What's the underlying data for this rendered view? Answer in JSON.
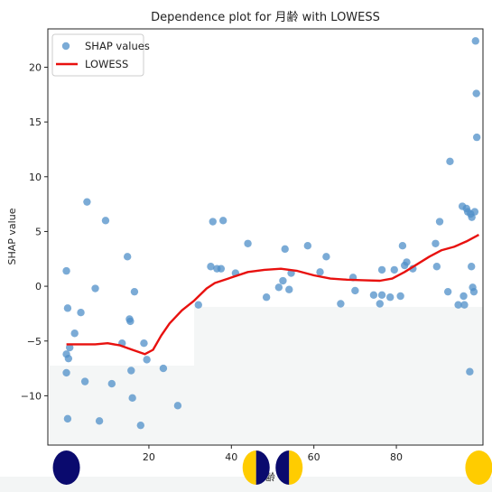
{
  "chart_data": {
    "type": "scatter",
    "title": "Dependence plot for 月齢 with LOWESS",
    "xlabel": "月齢",
    "ylabel": "SHAP value",
    "xlim": [
      -4.5,
      101
    ],
    "ylim": [
      -14.5,
      23.5
    ],
    "x_ticks": [
      20,
      40,
      60,
      80
    ],
    "y_ticks": [
      -10,
      -5,
      0,
      5,
      10,
      15,
      20
    ],
    "grid": false,
    "legend": {
      "position": "top-left",
      "entries": [
        "SHAP values",
        "LOWESS"
      ]
    },
    "colors": {
      "points": "#4f8fc8",
      "lowess": "#e8110f",
      "moon_dark": "#0a0a6e",
      "moon_light": "#ffcc00"
    },
    "series": [
      {
        "name": "SHAP values",
        "kind": "scatter",
        "points": [
          [
            0.0,
            1.4
          ],
          [
            0.3,
            -2.0
          ],
          [
            0.8,
            -5.6
          ],
          [
            0.0,
            -6.2
          ],
          [
            0.5,
            -6.6
          ],
          [
            0.0,
            -7.9
          ],
          [
            0.3,
            -12.1
          ],
          [
            2.0,
            -4.3
          ],
          [
            3.5,
            -2.4
          ],
          [
            4.5,
            -8.7
          ],
          [
            5.0,
            7.7
          ],
          [
            7.0,
            -0.2
          ],
          [
            8.0,
            -12.3
          ],
          [
            9.5,
            6.0
          ],
          [
            11.0,
            -8.9
          ],
          [
            13.5,
            -5.2
          ],
          [
            14.8,
            2.7
          ],
          [
            15.3,
            -3.0
          ],
          [
            15.5,
            -3.2
          ],
          [
            15.7,
            -7.7
          ],
          [
            16.0,
            -10.2
          ],
          [
            16.5,
            -0.5
          ],
          [
            18.0,
            -12.7
          ],
          [
            18.8,
            -5.2
          ],
          [
            19.5,
            -6.7
          ],
          [
            23.5,
            -7.5
          ],
          [
            27.0,
            -10.9
          ],
          [
            32.0,
            -1.7
          ],
          [
            35.0,
            1.8
          ],
          [
            35.5,
            5.9
          ],
          [
            36.5,
            1.6
          ],
          [
            37.5,
            1.6
          ],
          [
            38.0,
            6.0
          ],
          [
            41.0,
            1.2
          ],
          [
            44.0,
            3.9
          ],
          [
            48.5,
            -1.0
          ],
          [
            51.5,
            -0.1
          ],
          [
            52.5,
            0.5
          ],
          [
            53.0,
            3.4
          ],
          [
            54.0,
            -0.3
          ],
          [
            54.5,
            1.2
          ],
          [
            58.5,
            3.7
          ],
          [
            61.5,
            1.3
          ],
          [
            63.0,
            2.7
          ],
          [
            66.5,
            -1.6
          ],
          [
            69.5,
            0.8
          ],
          [
            70.0,
            -0.4
          ],
          [
            74.5,
            -0.8
          ],
          [
            76.0,
            -1.6
          ],
          [
            76.5,
            -0.8
          ],
          [
            76.5,
            1.5
          ],
          [
            78.5,
            -1.0
          ],
          [
            79.5,
            1.5
          ],
          [
            81.0,
            -0.9
          ],
          [
            81.5,
            3.7
          ],
          [
            82.0,
            1.9
          ],
          [
            82.5,
            2.2
          ],
          [
            84.0,
            1.6
          ],
          [
            89.5,
            3.9
          ],
          [
            89.8,
            1.8
          ],
          [
            90.5,
            5.9
          ],
          [
            92.5,
            -0.5
          ],
          [
            93.0,
            11.4
          ],
          [
            95.0,
            -1.7
          ],
          [
            96.0,
            7.3
          ],
          [
            96.3,
            -0.9
          ],
          [
            96.5,
            -1.7
          ],
          [
            97.0,
            7.1
          ],
          [
            97.3,
            6.8
          ],
          [
            97.8,
            -7.8
          ],
          [
            98.0,
            6.6
          ],
          [
            98.2,
            1.8
          ],
          [
            98.3,
            6.3
          ],
          [
            98.5,
            -0.1
          ],
          [
            98.8,
            -0.5
          ],
          [
            99.0,
            6.8
          ],
          [
            99.2,
            22.4
          ],
          [
            99.4,
            17.6
          ],
          [
            99.5,
            13.6
          ]
        ]
      },
      {
        "name": "LOWESS",
        "kind": "line",
        "points": [
          [
            0,
            -5.3
          ],
          [
            4,
            -5.3
          ],
          [
            7,
            -5.3
          ],
          [
            10,
            -5.2
          ],
          [
            13,
            -5.4
          ],
          [
            16,
            -5.8
          ],
          [
            19,
            -6.2
          ],
          [
            21,
            -5.8
          ],
          [
            23,
            -4.5
          ],
          [
            25,
            -3.4
          ],
          [
            28,
            -2.2
          ],
          [
            31,
            -1.3
          ],
          [
            34,
            -0.2
          ],
          [
            36,
            0.3
          ],
          [
            40,
            0.8
          ],
          [
            44,
            1.3
          ],
          [
            48,
            1.5
          ],
          [
            52,
            1.6
          ],
          [
            56,
            1.4
          ],
          [
            60,
            1.0
          ],
          [
            64,
            0.7
          ],
          [
            68,
            0.6
          ],
          [
            72,
            0.55
          ],
          [
            76,
            0.5
          ],
          [
            79,
            0.7
          ],
          [
            82,
            1.3
          ],
          [
            85,
            2.0
          ],
          [
            88,
            2.7
          ],
          [
            91,
            3.3
          ],
          [
            94,
            3.6
          ],
          [
            97,
            4.1
          ],
          [
            100,
            4.7
          ]
        ]
      }
    ],
    "moon_markers": [
      {
        "x": 0,
        "phase": "new",
        "icon": "new-moon-icon"
      },
      {
        "x": 46,
        "phase": "first-quarter",
        "icon": "first-quarter-moon-icon"
      },
      {
        "x": 54,
        "phase": "last-quarter",
        "icon": "last-quarter-moon-icon"
      },
      {
        "x": 100,
        "phase": "full",
        "icon": "full-moon-icon"
      }
    ]
  }
}
